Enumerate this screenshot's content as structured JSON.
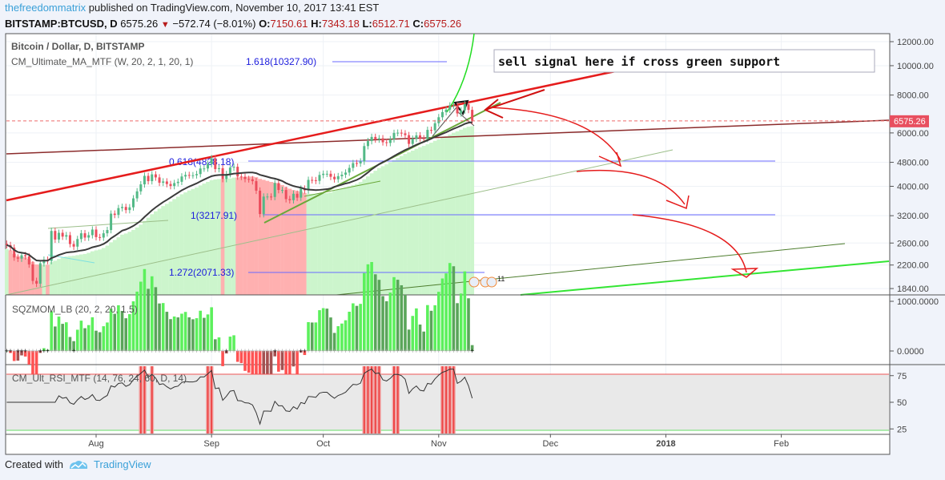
{
  "header": {
    "author": "thefreedommatrix",
    "published": "published on TradingView.com, November 10, 2017 13:41 EST",
    "symbol": "BITSTAMP:BTCUSD, D",
    "last": "6575.26",
    "change": "−572.74 (−8.01%)",
    "o_label": "O:",
    "o": "7150.61",
    "h_label": "H:",
    "h": "7343.18",
    "l_label": "L:",
    "l": "6512.71",
    "c_label": "C:",
    "c": "6575.26"
  },
  "legend": {
    "main": "Bitcoin / Dollar, D, BITSTAMP",
    "ma": "CM_Ultimate_MA_MTF (W, 20, 2, 1, 20, 1)",
    "sqz": "SQZMOM_LB (20, 2, 20, 1.5)",
    "rsi": "CM_Ult_RSI_MTF (14, 76, 24, 60, D, 14)"
  },
  "annotations": {
    "note": "sell signal here if cross green support",
    "fib_1618": "1.618(10327.90)",
    "fib_0618": "0.618(4828.18)",
    "fib_1": "1(3217.91)",
    "fib_1272": "1.272(2071.33)",
    "event_badge": "11"
  },
  "footer": {
    "created_with": "Created with",
    "brand": "TradingView"
  },
  "colors": {
    "up": "#53b987",
    "down": "#eb4d5c",
    "ma": "#3b3b3b",
    "bull_bg": "#ccf5cc",
    "bear_bg": "#ffb0b0",
    "sqz_up": "#5cf05c",
    "sqz_up_dim": "#5aa55a",
    "sqz_dn": "#ff5252",
    "sqz_dn_dim": "#a55050"
  },
  "chart_data": {
    "type": "candlestick",
    "title": "Bitcoin / Dollar, D, BITSTAMP",
    "start_date": "2017-07-08",
    "end_date": "2017-11-10",
    "y_scale": "log",
    "ylim": [
      1780,
      12600
    ],
    "closes": [
      2560,
      2510,
      2330,
      2310,
      2370,
      2350,
      2210,
      1950,
      1910,
      2230,
      2290,
      2270,
      2850,
      2670,
      2810,
      2730,
      2760,
      2580,
      2530,
      2680,
      2800,
      2710,
      2760,
      2880,
      2720,
      2710,
      2800,
      2870,
      3250,
      3220,
      3390,
      3420,
      3340,
      3410,
      3650,
      3850,
      4060,
      4330,
      4160,
      4380,
      4280,
      4110,
      4150,
      4070,
      4010,
      4100,
      4140,
      4310,
      4360,
      4350,
      4350,
      4390,
      4580,
      4580,
      4740,
      4950,
      4560,
      4590,
      4230,
      4390,
      4610,
      4640,
      4310,
      4300,
      4230,
      4220,
      4160,
      3870,
      3240,
      3700,
      3700,
      3690,
      4100,
      3890,
      3890,
      3630,
      3600,
      3780,
      3670,
      3930,
      3880,
      4200,
      4190,
      4170,
      4360,
      4400,
      4400,
      4300,
      4220,
      4320,
      4370,
      4440,
      4600,
      4770,
      4760,
      4830,
      5430,
      5640,
      5820,
      5710,
      5760,
      5590,
      5560,
      5720,
      6000,
      6010,
      5980,
      5900,
      5520,
      5740,
      5890,
      5760,
      5740,
      6140,
      6120,
      6460,
      6760,
      7030,
      7160,
      7390,
      7390,
      6960,
      7120,
      7460,
      7150,
      6575
    ],
    "price_ticks": [
      "12000.00",
      "10000.00",
      "8000.00",
      "6000.00",
      "4800.00",
      "4000.00",
      "3200.00",
      "2600.00",
      "2200.00",
      "1840.00"
    ],
    "price_tick_values": [
      12000,
      10000,
      8000,
      6000,
      4800,
      4000,
      3200,
      2600,
      2200,
      1840
    ],
    "last_price_label": "6575.26",
    "last_price": 6575.26,
    "sqz_ticks": [
      "1000.0000",
      "0.0000"
    ],
    "rsi_ticks": [
      "75",
      "50",
      "25"
    ],
    "rsi_upper": 76,
    "rsi_lower": 24,
    "time_ticks": [
      "Aug",
      "Sep",
      "Oct",
      "Nov",
      "Dec",
      "2018",
      "Feb"
    ],
    "time_tick_days": [
      24,
      55,
      85,
      116,
      146,
      177,
      208
    ],
    "fib_levels": [
      10327.9,
      4828.18,
      3217.91,
      2071.33
    ]
  }
}
